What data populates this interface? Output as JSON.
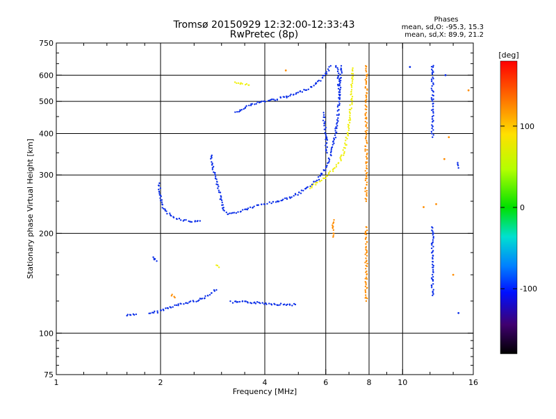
{
  "chart_data": {
    "type": "scatter",
    "title": "Tromsø 20150929 12:32:00-12:33:43",
    "subtitle": "RwPretec (8p)",
    "xlabel": "Frequency [MHz]",
    "ylabel": "Stationary phase Virtual Height [km]",
    "x_scale": "log",
    "y_scale": "log",
    "xlim": [
      1,
      16
    ],
    "ylim": [
      75,
      750
    ],
    "x_ticks": [
      1,
      2,
      4,
      6,
      8,
      10,
      16
    ],
    "y_ticks": [
      75,
      100,
      200,
      300,
      400,
      500,
      600,
      750
    ],
    "grid_x": [
      2,
      4,
      6,
      8,
      10
    ],
    "grid_y": [
      100,
      200,
      300,
      400,
      500,
      600
    ],
    "phase_stats": {
      "heading": "Phases",
      "line_o": "mean, sd,O: -95.3, 15.3",
      "line_x": "mean, sd,X:  89.9, 21.2"
    },
    "colorbar": {
      "label": "[deg]",
      "range": [
        -180,
        180
      ],
      "ticks": [
        100,
        0,
        -100
      ]
    },
    "series": [
      {
        "mode": "O",
        "phase": -95,
        "color": "#0a2ee8",
        "segments": [
          [
            [
              1.6,
              113
            ],
            [
              1.65,
              114
            ],
            [
              1.7,
              114
            ]
          ],
          [
            [
              1.85,
              114
            ],
            [
              1.95,
              116
            ],
            [
              2.05,
              118
            ],
            [
              2.2,
              121
            ],
            [
              2.35,
              123
            ],
            [
              2.5,
              125
            ],
            [
              2.65,
              127
            ],
            [
              2.8,
              132
            ],
            [
              2.9,
              135
            ]
          ],
          [
            [
              1.9,
              170
            ],
            [
              1.95,
              165
            ]
          ],
          [
            [
              3.2,
              124
            ],
            [
              3.4,
              124
            ],
            [
              3.6,
              124
            ],
            [
              4.5,
              122
            ],
            [
              4.7,
              122
            ],
            [
              4.9,
              122
            ]
          ],
          [
            [
              1.98,
              282
            ],
            [
              2.0,
              255
            ],
            [
              2.05,
              235
            ],
            [
              2.15,
              225
            ],
            [
              2.3,
              220
            ],
            [
              2.45,
              217
            ],
            [
              2.6,
              218
            ]
          ],
          [
            [
              2.8,
              345
            ],
            [
              2.82,
              320
            ],
            [
              2.86,
              305
            ],
            [
              2.9,
              290
            ],
            [
              2.95,
              270
            ],
            [
              3.0,
              250
            ],
            [
              3.05,
              235
            ],
            [
              3.15,
              228
            ],
            [
              3.35,
              232
            ],
            [
              3.6,
              238
            ],
            [
              3.9,
              244
            ],
            [
              4.2,
              248
            ],
            [
              4.5,
              252
            ],
            [
              4.8,
              258
            ],
            [
              5.1,
              266
            ],
            [
              5.4,
              278
            ],
            [
              5.7,
              292
            ],
            [
              6.0,
              315
            ],
            [
              6.2,
              345
            ],
            [
              6.35,
              380
            ],
            [
              6.45,
              420
            ],
            [
              6.52,
              470
            ],
            [
              6.58,
              520
            ],
            [
              6.62,
              580
            ],
            [
              6.65,
              640
            ]
          ],
          [
            [
              3.3,
              462
            ],
            [
              3.5,
              480
            ],
            [
              3.8,
              495
            ],
            [
              4.2,
              505
            ],
            [
              4.6,
              515
            ],
            [
              5.0,
              530
            ],
            [
              5.4,
              550
            ],
            [
              5.8,
              580
            ],
            [
              6.1,
              620
            ],
            [
              6.2,
              640
            ]
          ],
          [
            [
              5.9,
              460
            ],
            [
              6.0,
              400
            ],
            [
              6.05,
              350
            ]
          ],
          [
            [
              6.45,
              640
            ],
            [
              6.5,
              600
            ],
            [
              6.55,
              560
            ],
            [
              6.58,
              520
            ]
          ],
          [
            [
              12.2,
              645
            ],
            [
              12.2,
              600
            ],
            [
              12.2,
              560
            ],
            [
              12.2,
              520
            ],
            [
              12.2,
              480
            ],
            [
              12.2,
              440
            ],
            [
              12.2,
              400
            ],
            [
              12.2,
              390
            ]
          ],
          [
            [
              10.5,
              635
            ]
          ],
          [
            [
              13.3,
              600
            ]
          ],
          [
            [
              14.5,
              325
            ],
            [
              14.5,
              315
            ]
          ],
          [
            [
              12.2,
              210
            ],
            [
              12.2,
              160
            ],
            [
              12.2,
              130
            ]
          ],
          [
            [
              14.5,
              115
            ]
          ]
        ]
      },
      {
        "mode": "X",
        "phase": 90,
        "color": "#f0f010",
        "segments": [
          [
            [
              5.4,
              275
            ],
            [
              5.7,
              285
            ],
            [
              6.0,
              295
            ],
            [
              6.3,
              310
            ],
            [
              6.6,
              330
            ],
            [
              6.8,
              360
            ],
            [
              6.95,
              400
            ],
            [
              7.05,
              450
            ],
            [
              7.12,
              510
            ],
            [
              7.15,
              580
            ],
            [
              7.18,
              630
            ]
          ],
          [
            [
              3.3,
              570
            ],
            [
              3.6,
              560
            ]
          ],
          [
            [
              2.9,
              160
            ],
            [
              2.95,
              158
            ]
          ]
        ]
      },
      {
        "mode": "X",
        "phase": 140,
        "color": "#ff8c00",
        "segments": [
          [
            [
              7.85,
              640
            ],
            [
              7.85,
              600
            ],
            [
              7.85,
              550
            ],
            [
              7.85,
              500
            ],
            [
              7.85,
              450
            ],
            [
              7.85,
              400
            ],
            [
              7.85,
              360
            ],
            [
              7.85,
              330
            ],
            [
              7.85,
              300
            ],
            [
              7.85,
              270
            ],
            [
              7.85,
              250
            ]
          ],
          [
            [
              7.85,
              210
            ],
            [
              7.85,
              195
            ],
            [
              7.85,
              170
            ],
            [
              7.85,
              150
            ],
            [
              7.85,
              125
            ]
          ],
          [
            [
              6.3,
              220
            ],
            [
              6.3,
              195
            ]
          ],
          [
            [
              2.15,
              130
            ],
            [
              2.2,
              128
            ]
          ],
          [
            [
              4.6,
              620
            ]
          ],
          [
            [
              15.5,
              540
            ]
          ],
          [
            [
              13.6,
              390
            ]
          ],
          [
            [
              13.2,
              335
            ]
          ],
          [
            [
              12.5,
              245
            ]
          ],
          [
            [
              14.0,
              150
            ]
          ],
          [
            [
              11.5,
              240
            ]
          ]
        ]
      }
    ]
  }
}
